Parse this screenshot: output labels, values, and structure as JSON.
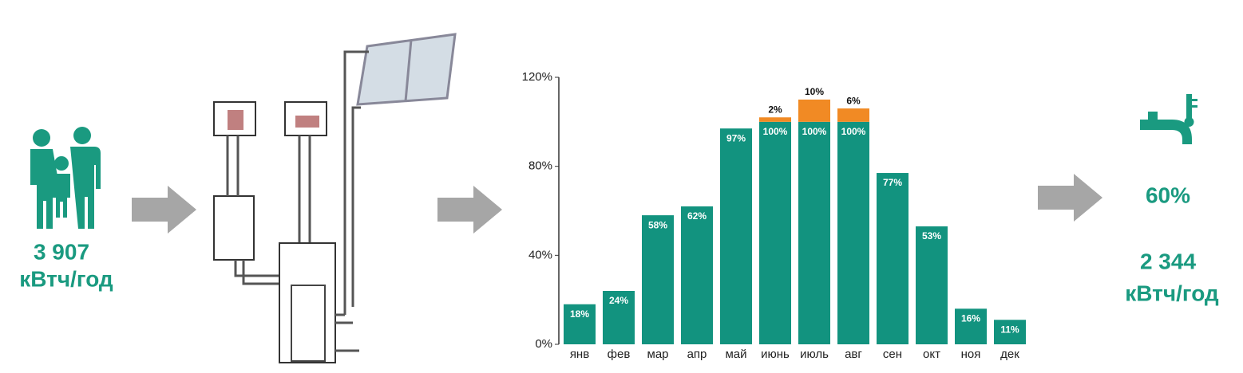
{
  "left": {
    "value": "3 907",
    "unit": "кВтч/год"
  },
  "chart_data": {
    "type": "stacked-bar",
    "categories": [
      "янв",
      "фев",
      "мар",
      "апр",
      "май",
      "июнь",
      "июль",
      "авг",
      "сен",
      "окт",
      "ноя",
      "дек"
    ],
    "series": [
      {
        "color": "#12937f",
        "values": [
          18,
          24,
          58,
          62,
          97,
          100,
          100,
          100,
          77,
          53,
          16,
          11
        ],
        "value_labels": [
          "18%",
          "24%",
          "58%",
          "62%",
          "97%",
          "100%",
          "100%",
          "100%",
          "77%",
          "53%",
          "16%",
          "11%"
        ]
      },
      {
        "color": "#f18a24",
        "values": [
          null,
          null,
          null,
          null,
          null,
          2,
          10,
          6,
          null,
          null,
          null,
          null
        ],
        "value_labels": [
          null,
          null,
          null,
          null,
          null,
          "2%",
          "10%",
          "6%",
          null,
          null,
          null,
          null
        ]
      }
    ],
    "ylim": [
      0,
      120
    ],
    "yticks": [
      {
        "value": 0,
        "label": "0%"
      },
      {
        "value": 40,
        "label": "40%"
      },
      {
        "value": 80,
        "label": "80%"
      },
      {
        "value": 120,
        "label": "120%"
      }
    ]
  },
  "right": {
    "percent": "60%",
    "value": "2 344",
    "unit": "кВтч/год"
  }
}
